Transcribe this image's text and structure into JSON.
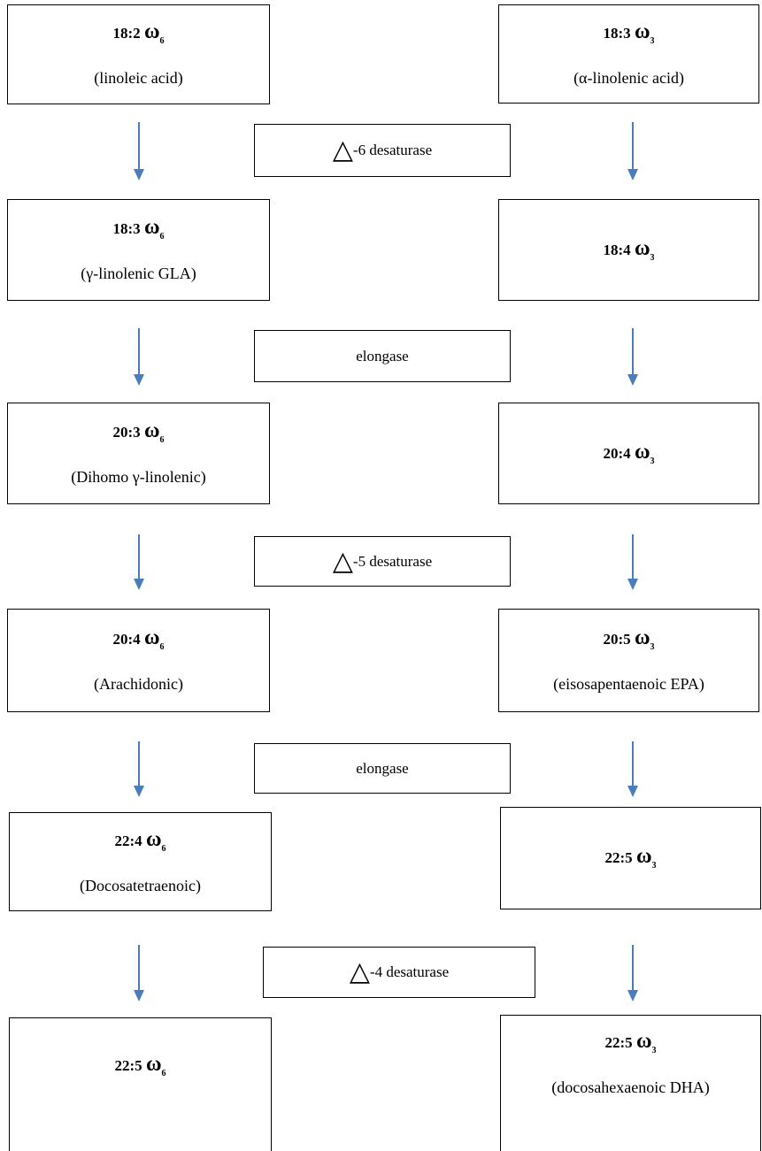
{
  "left_column": [
    {
      "ratio": "18:2",
      "symbol": "ω",
      "subscript": "6",
      "name": "(linoleic acid)"
    },
    {
      "ratio": "18:3",
      "symbol": "ω",
      "subscript": "6",
      "name": "(γ-linolenic GLA)"
    },
    {
      "ratio": "20:3",
      "symbol": "ω",
      "subscript": "6",
      "name": "(Dihomo γ-linolenic)"
    },
    {
      "ratio": "20:4",
      "symbol": "ω",
      "subscript": "6",
      "name": "(Arachidonic)"
    },
    {
      "ratio": "22:4",
      "symbol": "ω",
      "subscript": "6",
      "name": "(Docosatetraenoic)"
    },
    {
      "ratio": "22:5",
      "symbol": "ω",
      "subscript": "6"
    }
  ],
  "right_column": [
    {
      "ratio": "18:3",
      "symbol": "ω",
      "subscript": "3",
      "name": "(α-linolenic acid)"
    },
    {
      "ratio": "18:4",
      "symbol": "ω",
      "subscript": "3"
    },
    {
      "ratio": "20:4",
      "symbol": "ω",
      "subscript": "3"
    },
    {
      "ratio": "20:5",
      "symbol": "ω",
      "subscript": "3",
      "name": "(eisosapentaenoic EPA)"
    },
    {
      "ratio": "22:5",
      "symbol": "ω",
      "subscript": "3"
    },
    {
      "ratio": "22:5",
      "symbol": "ω",
      "subscript": "3",
      "name": "(docosahexaenoic DHA)"
    }
  ],
  "enzymes": [
    {
      "symbol": "△",
      "text": "-6 desaturase"
    },
    {
      "text": "elongase"
    },
    {
      "symbol": "△",
      "text": "-5 desaturase"
    },
    {
      "text": "elongase"
    },
    {
      "symbol": "△",
      "text": "-4 desaturase"
    }
  ]
}
